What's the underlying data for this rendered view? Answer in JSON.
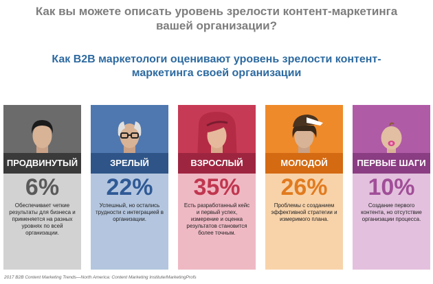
{
  "header": {
    "title_line1": "Как вы можете описать уровень зрелости контент-маркетинга",
    "title_line2": "вашей организации?"
  },
  "subheader": {
    "line1": "Как B2B маркетологи оценивают уровень зрелости контент-",
    "line2": "маркетинга своей организации"
  },
  "cards": [
    {
      "label": "ПРОДВИНУТЫЙ",
      "percent": "6%",
      "description": "Обеспечивает четкие результаты для бизнеса и применяется на разных уровнях по всей организации.",
      "top_color": "#6b6b6b",
      "band_color": "#3a3a3a",
      "bottom_color": "#d2d2d2",
      "pct_color": "#5a5a5a"
    },
    {
      "label": "ЗРЕЛЫЙ",
      "percent": "22%",
      "description": "Успешный, но остались трудности с интеграцией в организации.",
      "top_color": "#4f78b0",
      "band_color": "#2f5588",
      "bottom_color": "#b4c6df",
      "pct_color": "#2f5a96"
    },
    {
      "label": "ВЗРОСЛЫЙ",
      "percent": "35%",
      "description": "Есть разработанный кейс и первый успех, измерение и оценка результатов становится более точным.",
      "top_color": "#c73a55",
      "band_color": "#9e2540",
      "bottom_color": "#efb9c4",
      "pct_color": "#c0364f"
    },
    {
      "label": "МОЛОДОЙ",
      "percent": "26%",
      "description": "Проблемы с созданием эффективной стратегии и измеримого плана.",
      "top_color": "#ee8a2a",
      "band_color": "#d46a12",
      "bottom_color": "#f8d3aa",
      "pct_color": "#e17b1f"
    },
    {
      "label": "ПЕРВЫЕ ШАГИ",
      "percent": "10%",
      "description": "Создание первого контента, но отсутствие организации процесса.",
      "top_color": "#b05ba6",
      "band_color": "#8a3d82",
      "bottom_color": "#e3c1de",
      "pct_color": "#a14e98"
    }
  ],
  "footer": {
    "source": "2017 B2B Content Marketing Trends—North America: Content Marketing Institute/MarketingProfs"
  }
}
